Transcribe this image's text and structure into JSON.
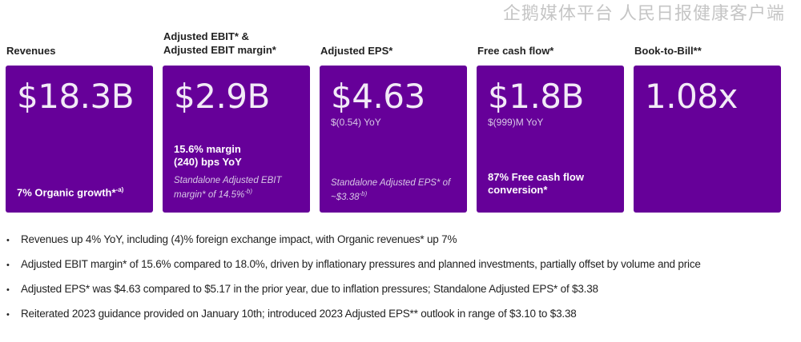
{
  "labels": [
    "Revenues",
    "Adjusted EBIT* &",
    "Adjusted EBIT margin*",
    "Adjusted EPS*",
    "Free cash flow*",
    "Book-to-Bill**"
  ],
  "cards": {
    "revenues": {
      "value": "$18.3B",
      "note": "7% Organic growth*",
      "note_sup": "-a)"
    },
    "ebit": {
      "value": "$2.9B",
      "margin": "15.6% margin",
      "bps": "(240) bps  YoY",
      "standalone": "Standalone Adjusted EBIT",
      "standalone2": "margin* of 14.5%",
      "sup": "-b)"
    },
    "eps": {
      "value": "$4.63",
      "yoy": "$(0.54) YoY",
      "standalone": "Standalone Adjusted EPS* of",
      "standalone2": "~$3.38",
      "sup": "-b)"
    },
    "fcf": {
      "value": "$1.8B",
      "yoy": "$(999)M YoY",
      "conv": "87% Free cash flow",
      "conv2": "conversion*"
    },
    "btb": {
      "value": "1.08x"
    }
  },
  "bullets": [
    "Revenues up 4% YoY,  including (4)% foreign exchange impact, with Organic revenues* up 7%",
    "Adjusted EBIT margin* of 15.6%  compared to 18.0%, driven by inflationary pressures and planned investments, partially offset by volume and price",
    "Adjusted EPS* was  $4.63  compared to  $5.17 in the prior year, due to inflation pressures; Standalone Adjusted EPS* of $3.38",
    "Reiterated 2023 guidance provided on January 10th; introduced 2023 Adjusted EPS** outlook in range of $3.10 to $3.38"
  ],
  "watermark": "企鹅媒体平台 人民日报健康客户端",
  "colors": {
    "card": "#660099"
  }
}
